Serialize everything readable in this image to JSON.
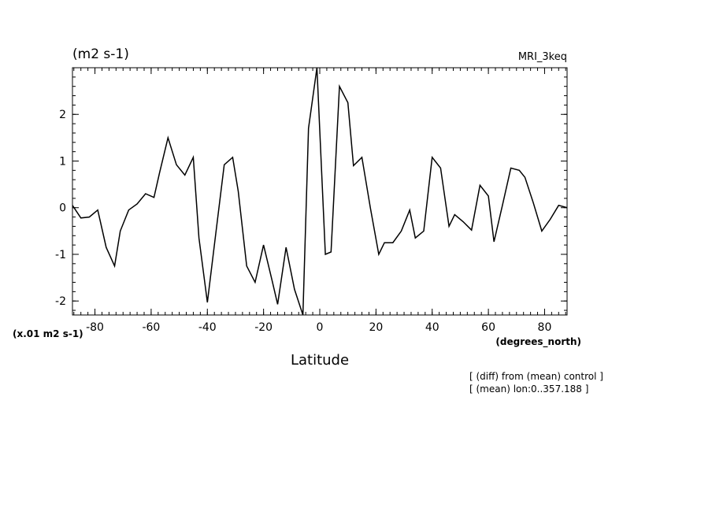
{
  "chart_data": {
    "type": "line",
    "title_left": "(m2 s-1)",
    "title_right": "MRI_3keq",
    "xlabel": "Latitude",
    "x_units": "(degrees_north)",
    "y_scale_note": "(x.01 m2 s-1)",
    "notes": [
      "[ (diff) from (mean) control ]",
      "[ (mean) lon:0..357.188 ]"
    ],
    "xlim": [
      -88,
      88
    ],
    "ylim": [
      -2.3,
      3.0
    ],
    "x_ticks": [
      -80,
      -60,
      -40,
      -20,
      0,
      20,
      40,
      60,
      80
    ],
    "x_tick_labels": [
      "-80",
      "-60",
      "-40",
      "-20",
      "0",
      "20",
      "40",
      "60",
      "80"
    ],
    "y_ticks": [
      -2,
      -1,
      0,
      1,
      2
    ],
    "y_tick_labels": [
      "-2",
      "-1",
      "0",
      "1",
      "2"
    ],
    "grid": false,
    "line_color": "#000000",
    "series": [
      {
        "x": [
          -88,
          -85,
          -82,
          -79,
          -76,
          -73,
          -71,
          -68,
          -65,
          -62,
          -59,
          -57,
          -54,
          -51,
          -48,
          -45,
          -43,
          -40,
          -37,
          -34,
          -31,
          -29,
          -26,
          -23,
          -20,
          -17,
          -15,
          -12,
          -9,
          -6,
          -4,
          -1,
          2,
          4,
          7,
          10,
          12,
          15,
          18,
          21,
          23,
          26,
          29,
          32,
          34,
          37,
          40,
          43,
          46,
          48,
          51,
          54,
          57,
          60,
          62,
          65,
          68,
          71,
          73,
          76,
          79,
          82,
          85,
          88
        ],
        "y": [
          0.05,
          -0.22,
          -0.2,
          -0.05,
          -0.85,
          -1.25,
          -0.5,
          -0.05,
          0.08,
          0.3,
          0.22,
          0.75,
          1.5,
          0.92,
          0.7,
          1.08,
          -0.65,
          -2.03,
          -0.55,
          0.92,
          1.08,
          0.35,
          -1.25,
          -1.6,
          -0.8,
          -1.55,
          -2.07,
          -0.85,
          -1.75,
          -2.3,
          1.7,
          3.0,
          -1.0,
          -0.95,
          2.6,
          2.25,
          0.9,
          1.08,
          0.0,
          -1.0,
          -0.75,
          -0.75,
          -0.5,
          -0.05,
          -0.65,
          -0.5,
          1.08,
          0.85,
          -0.4,
          -0.15,
          -0.3,
          -0.48,
          0.48,
          0.25,
          -0.73,
          0.05,
          0.85,
          0.8,
          0.65,
          0.1,
          -0.5,
          -0.25,
          0.05,
          0.0
        ]
      }
    ]
  }
}
